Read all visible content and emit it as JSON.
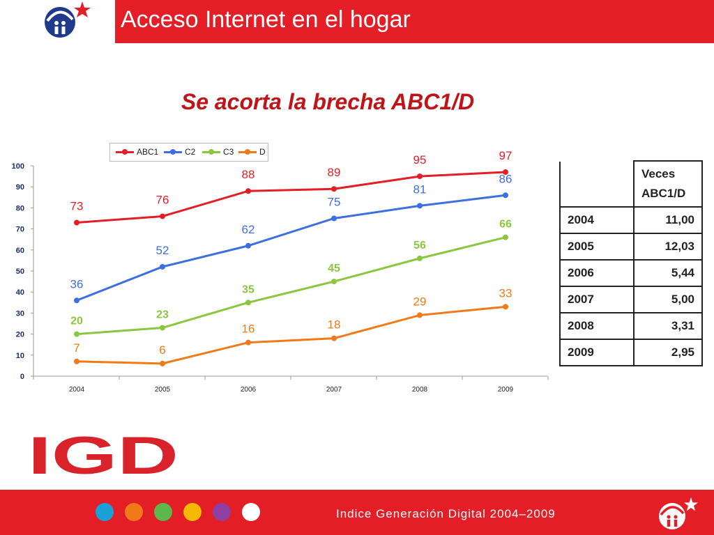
{
  "header": {
    "title": "Acceso Internet en el hogar"
  },
  "subtitle": "Se acorta la brecha ABC1/D",
  "chart_data": {
    "type": "line",
    "x": [
      "2004",
      "2005",
      "2006",
      "2007",
      "2008",
      "2009"
    ],
    "ylim": [
      0,
      100
    ],
    "yticks": [
      0,
      10,
      20,
      30,
      40,
      50,
      60,
      70,
      80,
      90,
      100
    ],
    "grid": false,
    "legend": "top",
    "series": [
      {
        "name": "ABC1",
        "color": "#e31e26",
        "values": [
          73,
          76,
          88,
          89,
          95,
          97
        ]
      },
      {
        "name": "C2",
        "color": "#3d6fe0",
        "values": [
          36,
          52,
          62,
          75,
          81,
          86
        ]
      },
      {
        "name": "C3",
        "color": "#8cc63f",
        "values": [
          20,
          23,
          35,
          45,
          56,
          66
        ]
      },
      {
        "name": "D",
        "color": "#f07a1a",
        "values": [
          7,
          6,
          16,
          18,
          29,
          33
        ]
      }
    ]
  },
  "table": {
    "header": "Veces ABC1/D",
    "rows": [
      {
        "year": "2004",
        "value": "11,00"
      },
      {
        "year": "2005",
        "value": "12,03"
      },
      {
        "year": "2006",
        "value": "5,44"
      },
      {
        "year": "2007",
        "value": "5,00"
      },
      {
        "year": "2008",
        "value": "3,31"
      },
      {
        "year": "2009",
        "value": "2,95"
      }
    ]
  },
  "logo": {
    "text": "IGD"
  },
  "footer": {
    "text": "Indice Generación Digital 2004–2009",
    "dots": [
      "#1ba0d8",
      "#f07a1a",
      "#5cb84c",
      "#f5b800",
      "#8e3fa0",
      "#ffffff"
    ]
  },
  "colors": {
    "brand_red": "#e31e26",
    "title_red": "#c01418",
    "navy": "#1b2a6b"
  }
}
